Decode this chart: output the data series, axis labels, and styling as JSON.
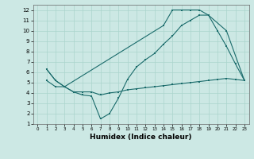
{
  "xlabel": "Humidex (Indice chaleur)",
  "background_color": "#cce8e4",
  "line_color": "#1a6b6b",
  "grid_color": "#aad4cc",
  "xlim": [
    -0.5,
    23.5
  ],
  "ylim": [
    1,
    12.5
  ],
  "xticks": [
    0,
    1,
    2,
    3,
    4,
    5,
    6,
    7,
    8,
    9,
    10,
    11,
    12,
    13,
    14,
    15,
    16,
    17,
    18,
    19,
    20,
    21,
    22,
    23
  ],
  "yticks": [
    1,
    2,
    3,
    4,
    5,
    6,
    7,
    8,
    9,
    10,
    11,
    12
  ],
  "line1_x": [
    1,
    2,
    3,
    14,
    15,
    16,
    17,
    18,
    19,
    21,
    23
  ],
  "line1_y": [
    6.3,
    5.2,
    4.6,
    10.5,
    12.0,
    12.0,
    12.0,
    12.0,
    11.5,
    10.0,
    5.2
  ],
  "line2_x": [
    1,
    2,
    3,
    4,
    5,
    6,
    7,
    8,
    9,
    10,
    11,
    12,
    13,
    14,
    15,
    16,
    17,
    18,
    19,
    20,
    21,
    22,
    23
  ],
  "line2_y": [
    6.3,
    5.2,
    4.6,
    4.1,
    3.8,
    3.7,
    1.5,
    2.0,
    3.5,
    5.3,
    6.5,
    7.2,
    7.8,
    8.7,
    9.5,
    10.5,
    11.0,
    11.5,
    11.5,
    10.0,
    8.5,
    6.8,
    5.2
  ],
  "line3_x": [
    1,
    2,
    3,
    4,
    5,
    6,
    7,
    8,
    9,
    10,
    11,
    12,
    13,
    14,
    15,
    16,
    17,
    18,
    19,
    20,
    21,
    22,
    23
  ],
  "line3_y": [
    5.2,
    4.6,
    4.6,
    4.1,
    4.1,
    4.1,
    3.8,
    4.0,
    4.1,
    4.3,
    4.4,
    4.5,
    4.6,
    4.7,
    4.8,
    4.9,
    5.0,
    5.1,
    5.2,
    5.3,
    5.4,
    5.3,
    5.2
  ]
}
